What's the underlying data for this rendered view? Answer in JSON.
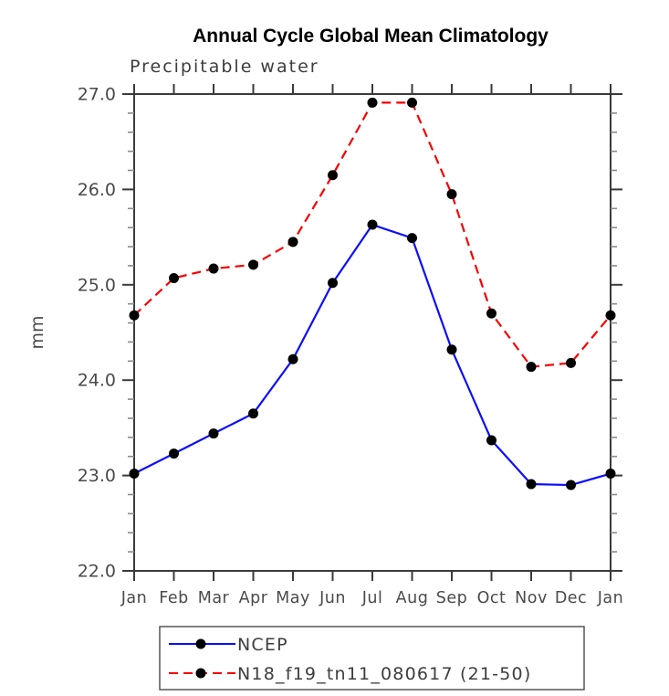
{
  "chart": {
    "title": "Annual Cycle Global Mean Climatology",
    "subtitle": "Precipitable water",
    "ylabel": "mm"
  },
  "chart_data": {
    "type": "line",
    "title": "Annual Cycle Global Mean Climatology",
    "subtitle": "Precipitable water",
    "xlabel": "",
    "ylabel": "mm",
    "categories": [
      "Jan",
      "Feb",
      "Mar",
      "Apr",
      "May",
      "Jun",
      "Jul",
      "Aug",
      "Sep",
      "Oct",
      "Nov",
      "Dec",
      "Jan"
    ],
    "ylim": [
      22.0,
      27.0
    ],
    "ytick_major_step": 1.0,
    "ytick_minor_step": 0.2,
    "ytick_labels": [
      "22.0",
      "23.0",
      "24.0",
      "25.0",
      "26.0",
      "27.0"
    ],
    "grid": false,
    "legend_position": "bottom-left-box",
    "marker": "filled-circle",
    "marker_color": "#000000",
    "series": [
      {
        "name": "NCEP",
        "color": "#0d0dff",
        "dash": "solid",
        "values": [
          23.02,
          23.23,
          23.44,
          23.65,
          24.22,
          25.02,
          25.63,
          25.49,
          24.32,
          23.37,
          22.91,
          22.9,
          23.02
        ]
      },
      {
        "name": "N18_f19_tn11_080617 (21-50)",
        "color": "#f80000",
        "dash": "dashed",
        "values": [
          24.68,
          25.07,
          25.17,
          25.21,
          25.45,
          26.15,
          26.91,
          26.91,
          25.95,
          24.7,
          24.14,
          24.18,
          24.68
        ]
      }
    ]
  }
}
